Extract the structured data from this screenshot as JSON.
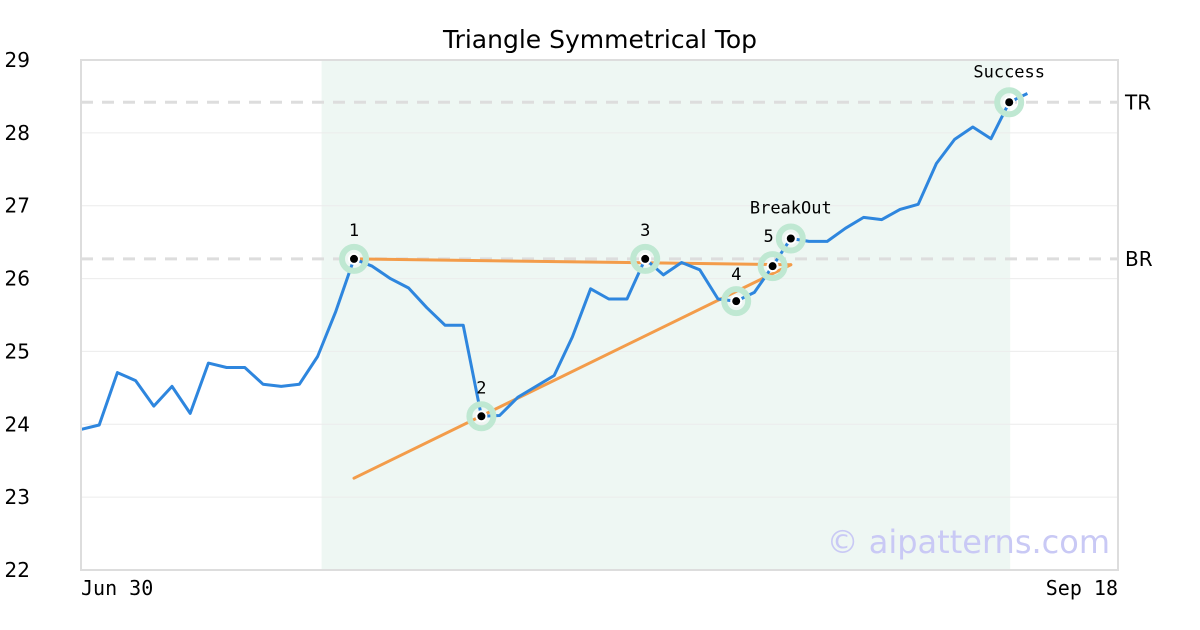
{
  "chart_data": {
    "type": "line",
    "title": "Triangle Symmetrical Top",
    "xlabel": "",
    "ylabel": "",
    "ylim": [
      22,
      29
    ],
    "yticks": [
      "22",
      "23",
      "24",
      "25",
      "26",
      "27",
      "28",
      "29"
    ],
    "x_tick_labels": [
      "Jun 30",
      "Sep 18"
    ],
    "grid": true,
    "legend": "none",
    "series": [
      {
        "values": [
          23.93,
          23.99,
          24.71,
          24.6,
          24.25,
          24.52,
          24.15,
          24.84,
          24.78,
          24.78,
          24.55,
          24.52,
          24.55,
          24.93,
          25.55,
          26.27,
          26.17,
          26.0,
          25.87,
          25.6,
          25.36,
          25.36,
          24.11,
          24.12,
          24.37,
          24.52,
          24.67,
          25.2,
          25.86,
          25.72,
          25.72,
          26.27,
          26.05,
          26.22,
          26.12,
          25.72,
          25.69,
          25.81,
          26.17,
          26.55,
          26.51,
          26.51,
          26.69,
          26.84,
          26.81,
          26.95,
          27.02,
          27.58,
          27.91,
          28.08,
          27.92,
          28.42,
          28.54
        ]
      }
    ],
    "pattern_points": [
      {
        "label": "1",
        "index": 15,
        "value": 26.27
      },
      {
        "label": "2",
        "index": 22,
        "value": 24.11
      },
      {
        "label": "3",
        "index": 31,
        "value": 26.27
      },
      {
        "label": "4",
        "index": 36,
        "value": 25.69
      },
      {
        "label": "5",
        "index": 38,
        "value": 26.17
      },
      {
        "label": "BreakOut",
        "index": 39,
        "value": 26.55
      },
      {
        "label": "Success",
        "index": 51,
        "value": 28.42
      }
    ],
    "trend_lines": [
      {
        "from": [
          15,
          26.27
        ],
        "to": [
          39,
          26.19
        ]
      },
      {
        "from": [
          15,
          23.26
        ],
        "to": [
          39,
          26.19
        ]
      }
    ],
    "levels": [
      {
        "label": "TR",
        "value": 28.42
      },
      {
        "label": "BR",
        "value": 26.27
      }
    ],
    "shaded_range": [
      13,
      51
    ],
    "watermark": "© aipatterns.com",
    "colors": {
      "price": "#2e86de",
      "trend": "#f39c4a",
      "marker_ring": "#bfe8d2",
      "shade": "#eef7f3",
      "level": "#dddddd",
      "frame": "#dddddd"
    }
  }
}
